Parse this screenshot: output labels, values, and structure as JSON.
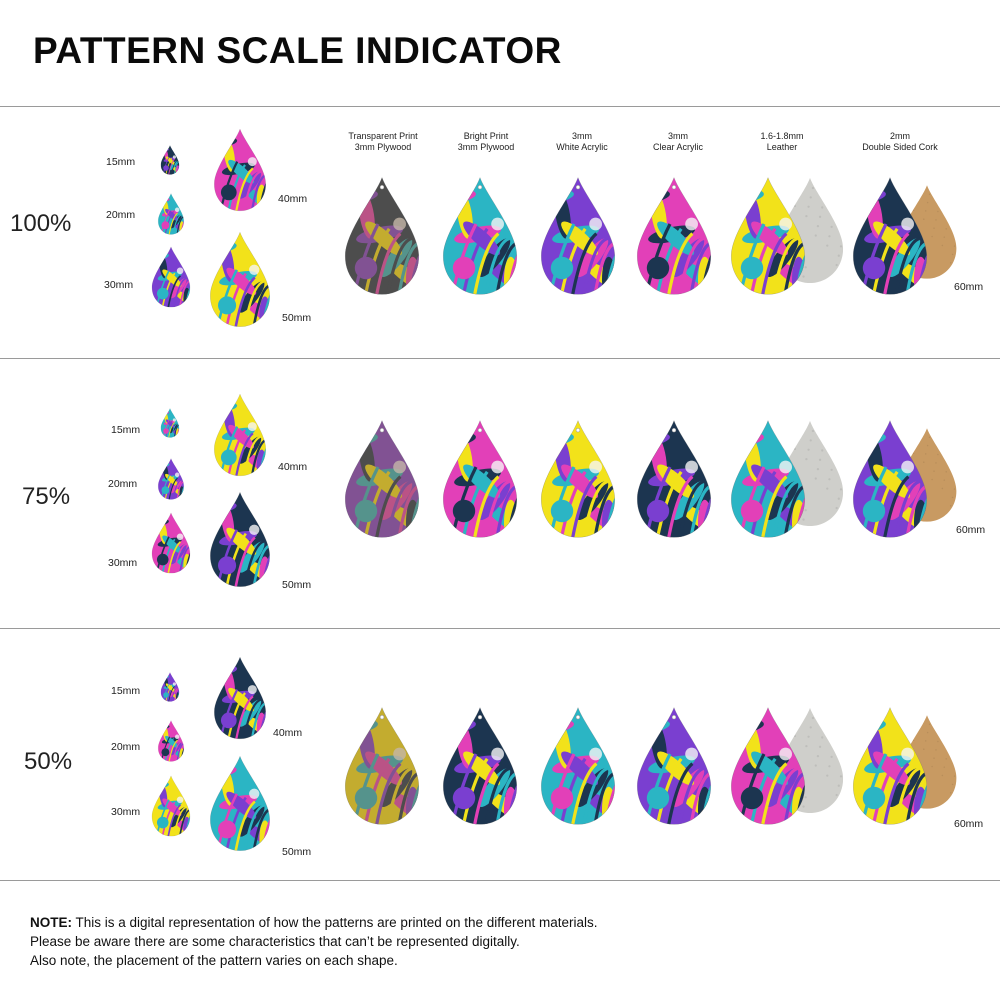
{
  "title": "PATTERN SCALE INDICATOR",
  "sizes": {
    "s15": "15mm",
    "s20": "20mm",
    "s30": "30mm",
    "s40": "40mm",
    "s50": "50mm",
    "s60": "60mm"
  },
  "materials": [
    {
      "line1": "Transparent Print",
      "line2": "3mm Plywood"
    },
    {
      "line1": "Bright Print",
      "line2": "3mm Plywood"
    },
    {
      "line1": "3mm",
      "line2": "White Acrylic"
    },
    {
      "line1": "3mm",
      "line2": "Clear Acrylic"
    },
    {
      "line1": "1.6-1.8mm",
      "line2": "Leather"
    },
    {
      "line1": "2mm",
      "line2": "Double Sided Cork"
    }
  ],
  "sections": [
    {
      "scale": "100%"
    },
    {
      "scale": "75%"
    },
    {
      "scale": "50%"
    }
  ],
  "note": {
    "label": "NOTE:",
    "line1": " This is a digital representation of how the patterns are printed on the different materials.",
    "line2": "Please be aware there are some characteristics that can’t be represented digitally.",
    "line3": "Also note, the placement of the pattern varies on each shape."
  },
  "colors": {
    "teal": "#2bb5c4",
    "navy": "#1c3550",
    "purple": "#7a3fd0",
    "magenta": "#e240b8",
    "yellow": "#f2e21a",
    "white": "#f5f5f5",
    "leather": "#cfcfcb",
    "cork": "#c89a62",
    "wood": "#8a6a4a"
  }
}
